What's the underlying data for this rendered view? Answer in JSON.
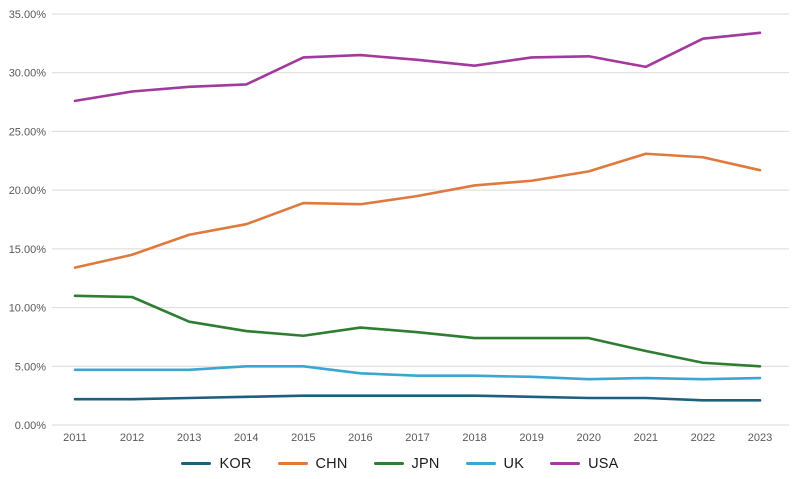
{
  "chart_data": {
    "type": "line",
    "title": "",
    "xlabel": "",
    "ylabel": "",
    "x": [
      2011,
      2012,
      2013,
      2014,
      2015,
      2016,
      2017,
      2018,
      2019,
      2020,
      2021,
      2022,
      2023
    ],
    "series": [
      {
        "name": "KOR",
        "color": "#1d5f7e",
        "values": [
          2.2,
          2.2,
          2.3,
          2.4,
          2.5,
          2.5,
          2.5,
          2.5,
          2.4,
          2.3,
          2.3,
          2.1,
          2.1
        ]
      },
      {
        "name": "CHN",
        "color": "#e0793e",
        "values": [
          13.4,
          14.5,
          16.2,
          17.1,
          18.9,
          18.8,
          19.5,
          20.4,
          20.8,
          21.6,
          23.1,
          22.8,
          21.7
        ]
      },
      {
        "name": "JPN",
        "color": "#2e7d32",
        "values": [
          11.0,
          10.9,
          8.8,
          8.0,
          7.6,
          8.3,
          7.9,
          7.4,
          7.4,
          7.4,
          6.3,
          5.3,
          5.0
        ]
      },
      {
        "name": "UK",
        "color": "#39a7d1",
        "values": [
          4.7,
          4.7,
          4.7,
          5.0,
          5.0,
          4.4,
          4.2,
          4.2,
          4.1,
          3.9,
          4.0,
          3.9,
          4.0
        ]
      },
      {
        "name": "USA",
        "color": "#a23a9e",
        "values": [
          27.6,
          28.4,
          28.8,
          29.0,
          31.3,
          31.5,
          31.1,
          30.6,
          31.3,
          31.4,
          30.5,
          32.9,
          33.4
        ]
      }
    ],
    "ylim": [
      0,
      35
    ],
    "ytick_step": 5,
    "ytick_labels": [
      "0.00%",
      "5.00%",
      "10.00%",
      "15.00%",
      "20.00%",
      "25.00%",
      "30.00%",
      "35.00%"
    ],
    "ytick_format": "percent_2dp",
    "grid": true,
    "gridline_color": "#d9d9d9",
    "axis_label_color": "#595959",
    "legend_position": "bottom",
    "background": "#ffffff"
  }
}
